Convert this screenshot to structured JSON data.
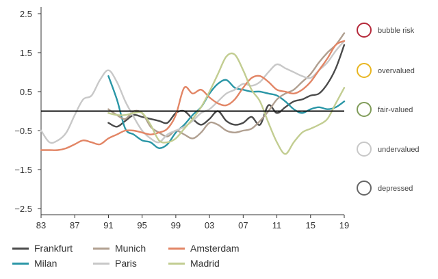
{
  "chart_data": {
    "type": "line",
    "x_ticks": [
      "83",
      "87",
      "91",
      "95",
      "99",
      "03",
      "07",
      "11",
      "15",
      "19"
    ],
    "y_ticks": [
      "2.5",
      "1.5",
      "0.5",
      "−0.5",
      "−1.5",
      "−2.5"
    ],
    "ylim": [
      -2.5,
      2.5
    ],
    "xlim": [
      1983,
      2019
    ],
    "zero_line": 0,
    "series": [
      {
        "name": "Frankfurt",
        "color": "#4a4a4a",
        "x": [
          1991,
          1992,
          1993,
          1994,
          1995,
          1996,
          1997,
          1998,
          1999,
          2000,
          2001,
          2002,
          2003,
          2004,
          2005,
          2006,
          2007,
          2008,
          2009,
          2010,
          2011,
          2012,
          2013,
          2014,
          2015,
          2016,
          2017,
          2018,
          2019
        ],
        "y": [
          -0.3,
          -0.4,
          -0.25,
          -0.1,
          -0.15,
          -0.2,
          -0.25,
          -0.3,
          -0.05,
          0,
          -0.2,
          -0.35,
          -0.2,
          0,
          -0.25,
          -0.35,
          -0.3,
          -0.15,
          -0.35,
          0.15,
          -0.05,
          0.1,
          0.25,
          0.3,
          0.4,
          0.45,
          0.7,
          1.1,
          1.7
        ]
      },
      {
        "name": "Milan",
        "color": "#2a96a6",
        "x": [
          1991,
          1992,
          1993,
          1994,
          1995,
          1996,
          1997,
          1998,
          1999,
          2000,
          2001,
          2002,
          2003,
          2004,
          2005,
          2006,
          2007,
          2008,
          2009,
          2010,
          2011,
          2012,
          2013,
          2014,
          2015,
          2016,
          2017,
          2018,
          2019
        ],
        "y": [
          0.9,
          0.3,
          -0.45,
          -0.6,
          -0.75,
          -0.8,
          -0.95,
          -0.85,
          -0.55,
          -0.35,
          -0.1,
          0.1,
          0.45,
          0.7,
          0.8,
          0.6,
          0.55,
          0.5,
          0.5,
          0.45,
          0.4,
          0.25,
          0.05,
          -0.05,
          0.05,
          0.1,
          0.05,
          0.1,
          0.25
        ]
      },
      {
        "name": "Munich",
        "color": "#b09f90",
        "x": [
          1991,
          1992,
          1993,
          1994,
          1995,
          1996,
          1997,
          1998,
          1999,
          2000,
          2001,
          2002,
          2003,
          2004,
          2005,
          2006,
          2007,
          2008,
          2009,
          2010,
          2011,
          2012,
          2013,
          2014,
          2015,
          2016,
          2017,
          2018,
          2019
        ],
        "y": [
          0.05,
          -0.1,
          -0.2,
          0,
          -0.05,
          -0.4,
          -0.55,
          -0.65,
          -0.5,
          -0.6,
          -0.7,
          -0.55,
          -0.3,
          -0.35,
          -0.5,
          -0.55,
          -0.5,
          -0.45,
          -0.25,
          0,
          0.3,
          0.45,
          0.55,
          0.75,
          0.95,
          1.25,
          1.5,
          1.7,
          2.0
        ]
      },
      {
        "name": "Paris",
        "color": "#c8c8c8",
        "x": [
          1983,
          1984,
          1985,
          1986,
          1987,
          1988,
          1989,
          1990,
          1991,
          1992,
          1993,
          1994,
          1995,
          1996,
          1997,
          1998,
          1999,
          2000,
          2001,
          2002,
          2003,
          2004,
          2005,
          2006,
          2007,
          2008,
          2009,
          2010,
          2011,
          2012,
          2013,
          2014,
          2015,
          2016,
          2017,
          2018,
          2019
        ],
        "y": [
          -0.5,
          -0.8,
          -0.75,
          -0.55,
          -0.1,
          0.3,
          0.4,
          0.8,
          1.05,
          0.75,
          0.25,
          -0.15,
          -0.5,
          -0.7,
          -0.8,
          -0.6,
          -0.5,
          -0.4,
          -0.25,
          -0.05,
          0.05,
          0.25,
          0.45,
          0.55,
          0.7,
          0.65,
          0.75,
          1.0,
          1.2,
          1.1,
          1.0,
          0.9,
          0.85,
          1.05,
          1.25,
          1.55,
          1.8
        ]
      },
      {
        "name": "Amsterdam",
        "color": "#e28565",
        "x": [
          1983,
          1984,
          1985,
          1986,
          1987,
          1988,
          1989,
          1990,
          1991,
          1992,
          1993,
          1994,
          1995,
          1996,
          1997,
          1998,
          1999,
          2000,
          2001,
          2002,
          2003,
          2004,
          2005,
          2006,
          2007,
          2008,
          2009,
          2010,
          2011,
          2012,
          2013,
          2014,
          2015,
          2016,
          2017,
          2018,
          2019
        ],
        "y": [
          -1.0,
          -1.0,
          -1.0,
          -0.95,
          -0.85,
          -0.75,
          -0.8,
          -0.85,
          -0.7,
          -0.6,
          -0.5,
          -0.5,
          -0.55,
          -0.6,
          -0.55,
          -0.45,
          -0.1,
          0.6,
          0.45,
          0.55,
          0.35,
          0.2,
          0.15,
          0.3,
          0.6,
          0.85,
          0.9,
          0.75,
          0.55,
          0.5,
          0.45,
          0.55,
          0.75,
          1.05,
          1.35,
          1.7,
          1.8
        ]
      },
      {
        "name": "Madrid",
        "color": "#c2cd91",
        "x": [
          1991,
          1992,
          1993,
          1994,
          1995,
          1996,
          1997,
          1998,
          1999,
          2000,
          2001,
          2002,
          2003,
          2004,
          2005,
          2006,
          2007,
          2008,
          2009,
          2010,
          2011,
          2012,
          2013,
          2014,
          2015,
          2016,
          2017,
          2018,
          2019
        ],
        "y": [
          -0.05,
          -0.1,
          -0.1,
          -0.05,
          -0.05,
          -0.35,
          -0.75,
          -0.8,
          -0.7,
          -0.45,
          -0.2,
          0.1,
          0.5,
          0.95,
          1.4,
          1.45,
          1.05,
          0.55,
          0.25,
          -0.3,
          -0.8,
          -1.1,
          -0.8,
          -0.55,
          -0.45,
          -0.35,
          -0.2,
          0.2,
          0.6
        ]
      }
    ]
  },
  "scale": [
    {
      "label": "bubble risk",
      "color": "#b5293a"
    },
    {
      "label": "overvalued",
      "color": "#e8b51f"
    },
    {
      "label": "fair-valued",
      "color": "#7f9b58"
    },
    {
      "label": "undervalued",
      "color": "#c8c8c8"
    },
    {
      "label": "depressed",
      "color": "#666666"
    }
  ],
  "scale_bar_gradient": [
    "#c97e86",
    "#e7c873",
    "#a3b98a",
    "#d6d6d6",
    "#9a9a9a"
  ]
}
